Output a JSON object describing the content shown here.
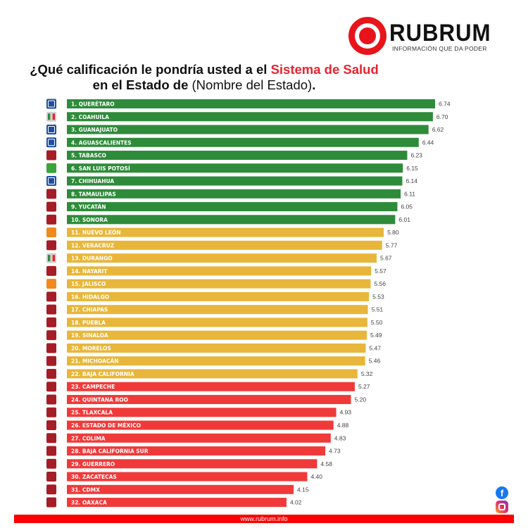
{
  "logo": {
    "name": "RUBRUM",
    "tagline": "INFORMACIÓN QUE DA PODER"
  },
  "title": {
    "part1": "¿Qué calificación le pondría usted a el ",
    "highlight": "Sistema de Salud",
    "part2": " en el Estado de ",
    "part3": "(Nombre del Estado)",
    "part4": "."
  },
  "footer": {
    "url": "www.rubrum.info"
  },
  "social": {
    "facebook_icon": "facebook-icon",
    "instagram_icon": "instagram-icon"
  },
  "colors": {
    "high": "#2e8b3a",
    "mid": "#e8b63a",
    "low": "#f03a3a",
    "PAN": "#1e4fa0",
    "PRI": "#d0d0d0",
    "MORENA": "#a51d26",
    "VERDE": "#3aa53a",
    "MC": "#f08a1e",
    "accent": "#e8141b"
  },
  "chart_data": {
    "type": "bar",
    "orientation": "horizontal",
    "xlim": [
      0,
      7
    ],
    "grid": false,
    "categories": [
      "1. QUERÉTARO",
      "2. COAHUILA",
      "3. GUANAJUATO",
      "4. AGUASCALIENTES",
      "5. TABASCO",
      "6. SAN LUIS POTOSÍ",
      "7. CHIHUAHUA",
      "8. TAMAULIPAS",
      "9. YUCATÁN",
      "10. SONORA",
      "11. NUEVO LEÓN",
      "12. VERACRUZ",
      "13. DURANGO",
      "14. NAYARIT",
      "15. JALISCO",
      "16. HIDALGO",
      "17. CHIAPAS",
      "18. PUEBLA",
      "19. SINALOA",
      "20. MORELOS",
      "21. MICHOACÁN",
      "22. BAJA CALIFORNIA",
      "23. CAMPECHE",
      "24. QUINTANA ROO",
      "25. TLAXCALA",
      "26. ESTADO DE MÉXICO",
      "27. COLIMA",
      "28. BAJA CALIFORNIA SUR",
      "29. GUERRERO",
      "30. ZACATECAS",
      "31. CDMX",
      "32. OAXACA"
    ],
    "values": [
      6.74,
      6.7,
      6.62,
      6.44,
      6.23,
      6.15,
      6.14,
      6.11,
      6.05,
      6.01,
      5.8,
      5.77,
      5.67,
      5.57,
      5.56,
      5.53,
      5.51,
      5.5,
      5.49,
      5.47,
      5.46,
      5.32,
      5.27,
      5.2,
      4.93,
      4.88,
      4.83,
      4.73,
      4.58,
      4.4,
      4.15,
      4.02
    ],
    "value_labels": [
      "6.74",
      "6.70",
      "6.62",
      "6.44",
      "6.23",
      "6.15",
      "6.14",
      "6.11",
      "6.05",
      "6.01",
      "5.80",
      "5.77",
      "5.67",
      "5.57",
      "5.56",
      "5.53",
      "5.51",
      "5.50",
      "5.49",
      "5.47",
      "5.46",
      "5.32",
      "5.27",
      "5.20",
      "4.93",
      "4.88",
      "4.83",
      "4.73",
      "4.58",
      "4.40",
      "4.15",
      "4.02"
    ],
    "tiers": [
      "high",
      "high",
      "high",
      "high",
      "high",
      "high",
      "high",
      "high",
      "high",
      "high",
      "mid",
      "mid",
      "mid",
      "mid",
      "mid",
      "mid",
      "mid",
      "mid",
      "mid",
      "mid",
      "mid",
      "mid",
      "low",
      "low",
      "low",
      "low",
      "low",
      "low",
      "low",
      "low",
      "low",
      "low"
    ],
    "parties": [
      "PAN",
      "PRI",
      "PAN",
      "PAN",
      "MORENA",
      "VERDE",
      "PAN",
      "MORENA",
      "MORENA",
      "MORENA",
      "MC",
      "MORENA",
      "PRI",
      "MORENA",
      "MC",
      "MORENA",
      "MORENA",
      "MORENA",
      "MORENA",
      "MORENA",
      "MORENA",
      "MORENA",
      "MORENA",
      "MORENA",
      "MORENA",
      "MORENA",
      "MORENA",
      "MORENA",
      "MORENA",
      "MORENA",
      "MORENA",
      "MORENA"
    ]
  }
}
